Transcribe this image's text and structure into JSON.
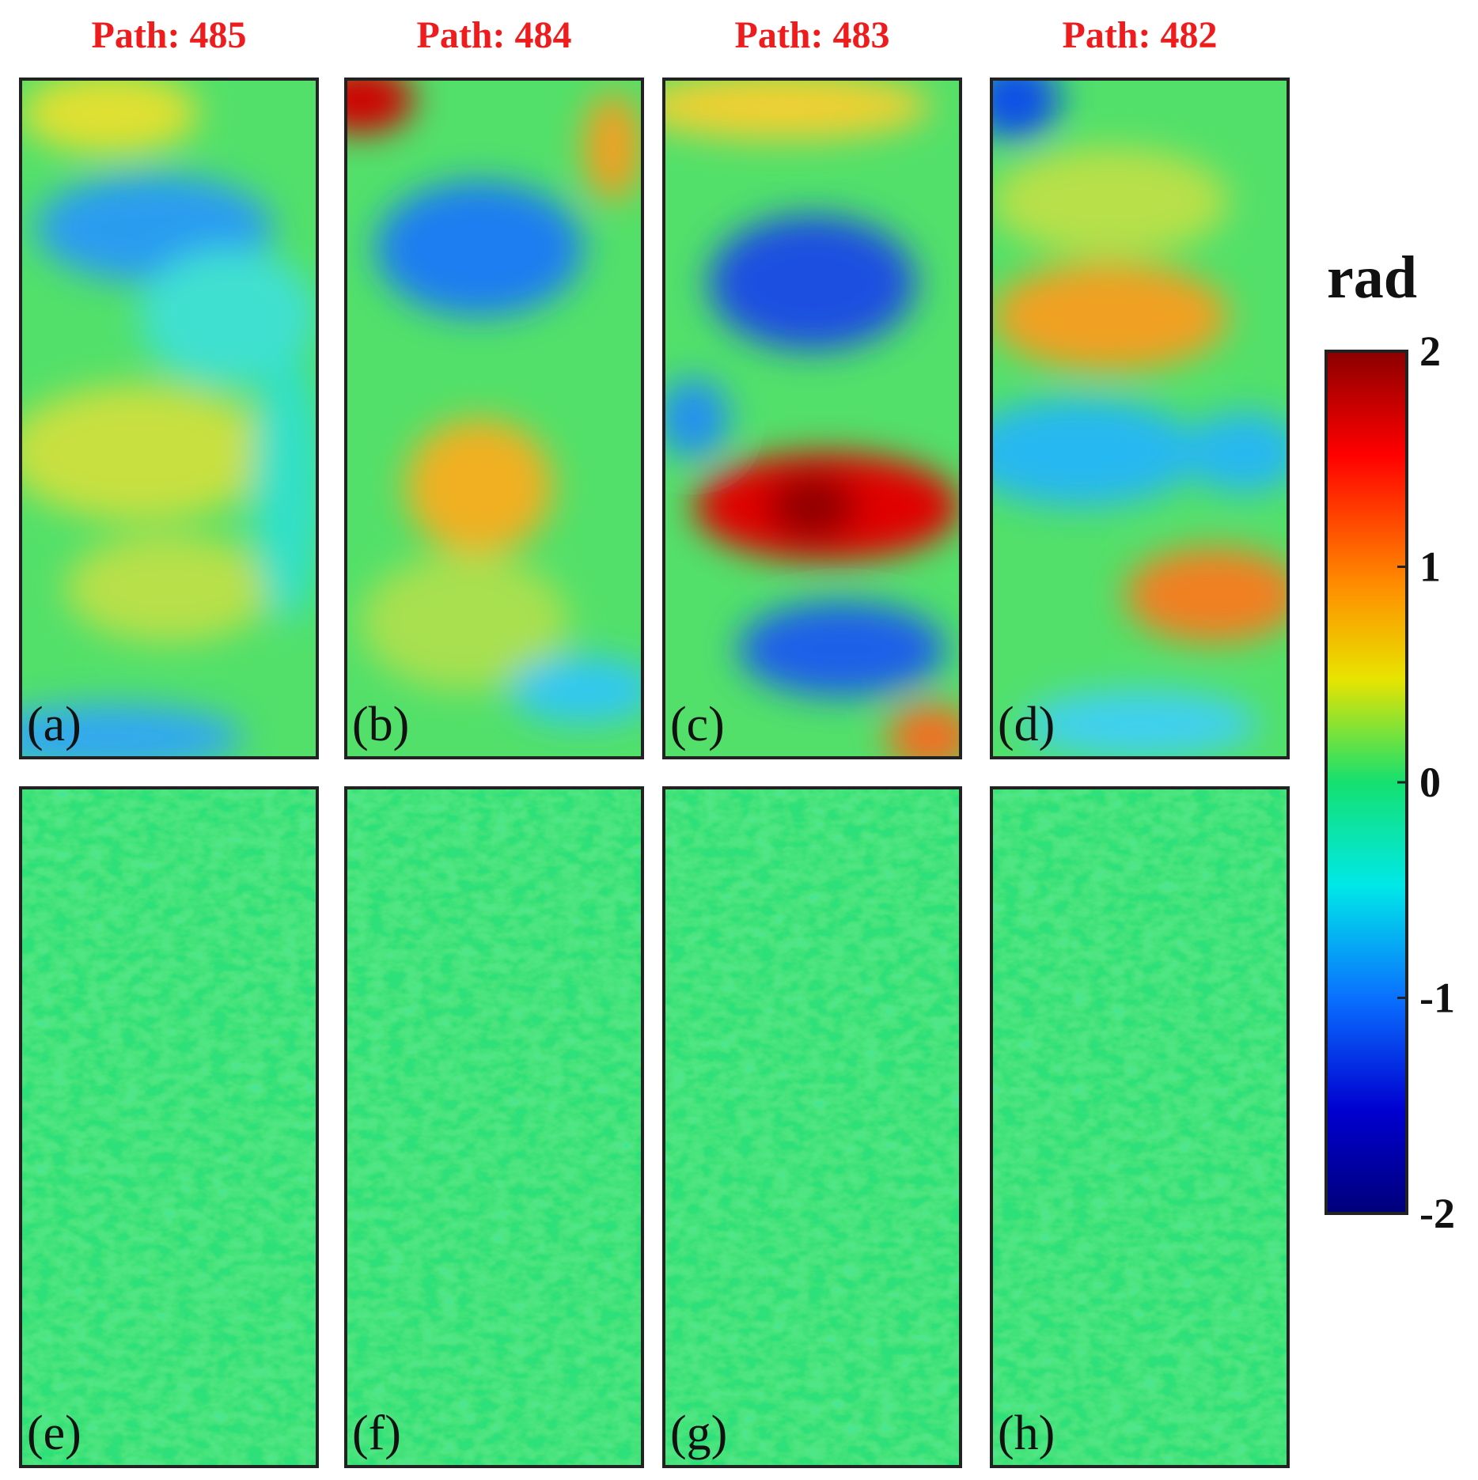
{
  "columns": [
    {
      "title": "Path: 485",
      "labels": [
        "(a)",
        "(e)"
      ]
    },
    {
      "title": "Path: 484",
      "labels": [
        "(b)",
        "(f)"
      ]
    },
    {
      "title": "Path: 483",
      "labels": [
        "(c)",
        "(g)"
      ]
    },
    {
      "title": "Path: 482",
      "labels": [
        "(d)",
        "(h)"
      ]
    }
  ],
  "colorbar": {
    "label": "rad",
    "lim": [
      -2,
      2
    ],
    "ticks": [
      2,
      1,
      0,
      -1,
      -2
    ]
  }
}
